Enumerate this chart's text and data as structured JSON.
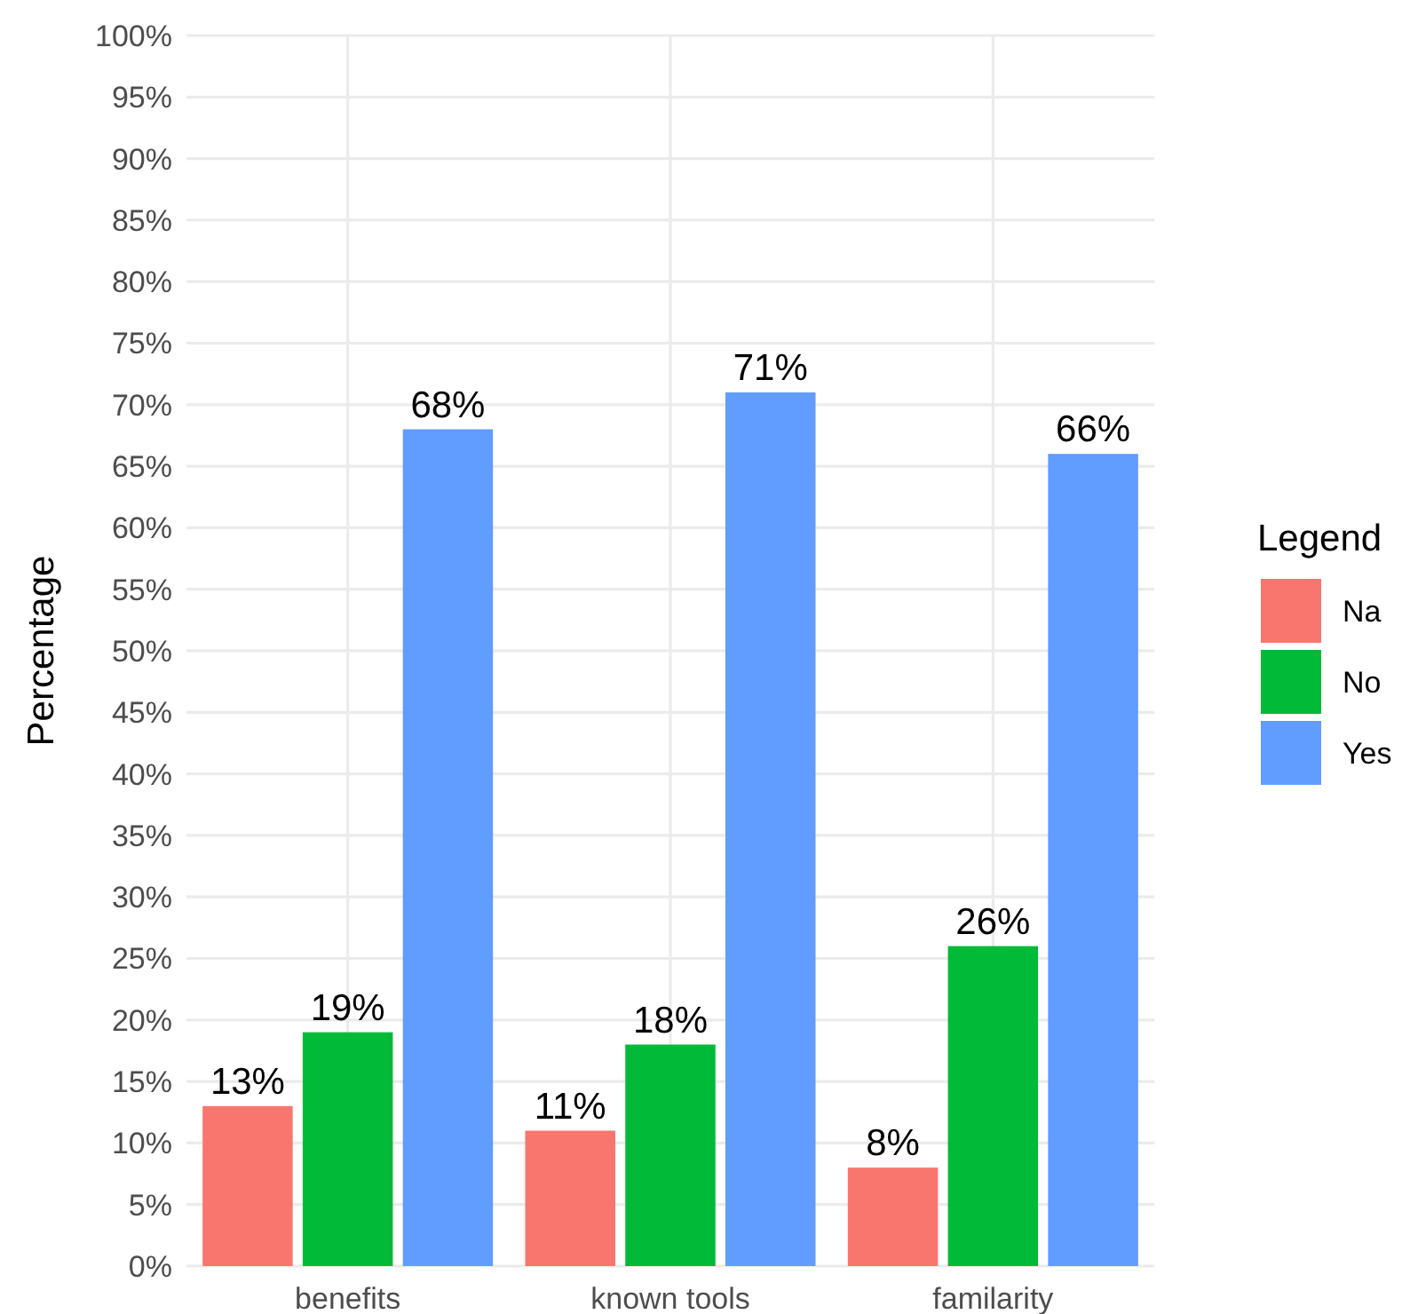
{
  "chart_data": {
    "type": "bar",
    "ylabel": "Percentage",
    "legend_title": "Legend",
    "legend": "right",
    "grid": true,
    "categories": [
      "benefits",
      "known tools",
      "familarity"
    ],
    "series": [
      {
        "name": "Na",
        "color": "#f8766d",
        "values": [
          13,
          11,
          8
        ],
        "value_labels": [
          "13%",
          "11%",
          "8%"
        ]
      },
      {
        "name": "No",
        "color": "#00ba38",
        "values": [
          19,
          18,
          26
        ],
        "value_labels": [
          "19%",
          "18%",
          "26%"
        ]
      },
      {
        "name": "Yes",
        "color": "#619cff",
        "values": [
          68,
          71,
          66
        ],
        "value_labels": [
          "68%",
          "71%",
          "66%"
        ]
      }
    ],
    "ylim": [
      0,
      100
    ],
    "yticks": [
      {
        "value": 0,
        "label": "0%"
      },
      {
        "value": 5,
        "label": "5%"
      },
      {
        "value": 10,
        "label": "10%"
      },
      {
        "value": 15,
        "label": "15%"
      },
      {
        "value": 20,
        "label": "20%"
      },
      {
        "value": 25,
        "label": "25%"
      },
      {
        "value": 30,
        "label": "30%"
      },
      {
        "value": 35,
        "label": "35%"
      },
      {
        "value": 40,
        "label": "40%"
      },
      {
        "value": 45,
        "label": "45%"
      },
      {
        "value": 50,
        "label": "50%"
      },
      {
        "value": 55,
        "label": "55%"
      },
      {
        "value": 60,
        "label": "60%"
      },
      {
        "value": 65,
        "label": "65%"
      },
      {
        "value": 70,
        "label": "70%"
      },
      {
        "value": 75,
        "label": "75%"
      },
      {
        "value": 80,
        "label": "80%"
      },
      {
        "value": 85,
        "label": "85%"
      },
      {
        "value": 90,
        "label": "90%"
      },
      {
        "value": 95,
        "label": "95%"
      },
      {
        "value": 100,
        "label": "100%"
      }
    ]
  }
}
